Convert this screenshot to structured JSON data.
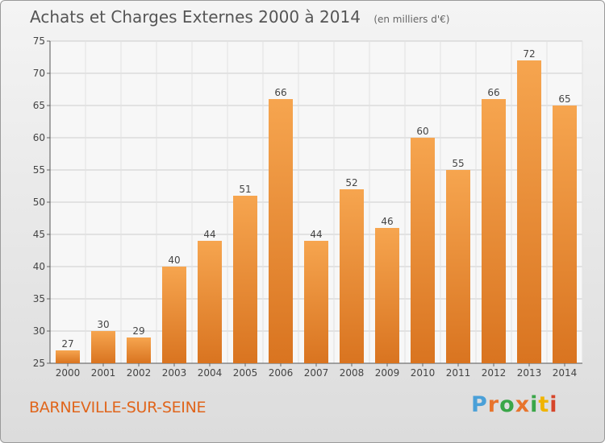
{
  "header": {
    "title": "Achats et Charges Externes 2000 à 2014",
    "subtitle": "(en milliers d'€)"
  },
  "footer": {
    "location": "BARNEVILLE-SUR-SEINE",
    "brand": "Proxiti",
    "brand_colors": [
      "#4aa0d8",
      "#e8742c",
      "#3aa648",
      "#e8742c",
      "#3aa648",
      "#f0b400",
      "#d6452a"
    ]
  },
  "chart_data": {
    "type": "bar",
    "categories": [
      "2000",
      "2001",
      "2002",
      "2003",
      "2004",
      "2005",
      "2006",
      "2007",
      "2008",
      "2009",
      "2010",
      "2011",
      "2012",
      "2013",
      "2014"
    ],
    "values": [
      27,
      30,
      29,
      40,
      44,
      51,
      66,
      44,
      52,
      46,
      60,
      55,
      66,
      72,
      65
    ],
    "ylim": [
      25,
      75
    ],
    "yticks": [
      25,
      30,
      35,
      40,
      45,
      50,
      55,
      60,
      65,
      70,
      75
    ],
    "grid": true,
    "bar_color_top": "#f6a54f",
    "bar_color_bottom": "#d97420",
    "grid_color": "#cccccc"
  }
}
